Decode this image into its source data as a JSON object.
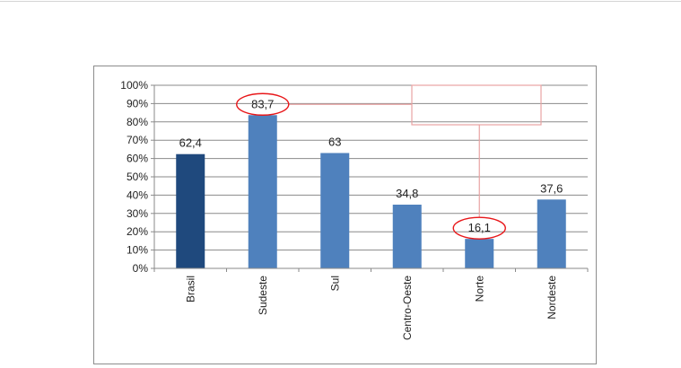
{
  "chart_data": {
    "type": "bar",
    "categories": [
      "Brasil",
      "Sudeste",
      "Sul",
      "Centro-Oeste",
      "Norte",
      "Nordeste"
    ],
    "values": [
      62.4,
      83.7,
      63,
      34.8,
      16.1,
      37.6
    ],
    "data_labels": [
      "62,4",
      "83,7",
      "63",
      "34,8",
      "16,1",
      "37,6"
    ],
    "title": "",
    "xlabel": "",
    "ylabel": "",
    "ylim": [
      0,
      100
    ],
    "yticks": [
      0,
      10,
      20,
      30,
      40,
      50,
      60,
      70,
      80,
      90,
      100
    ],
    "ytick_labels": [
      "0%",
      "10%",
      "20%",
      "30%",
      "40%",
      "50%",
      "60%",
      "70%",
      "80%",
      "90%",
      "100%"
    ],
    "grid": true,
    "legend": "none",
    "highlight_color": "#1f497d",
    "bar_color": "#4f81bd",
    "annotation_color": "#e8171a",
    "connector_color": "#e8a3a3",
    "circled_categories": [
      "Sudeste",
      "Norte"
    ]
  }
}
